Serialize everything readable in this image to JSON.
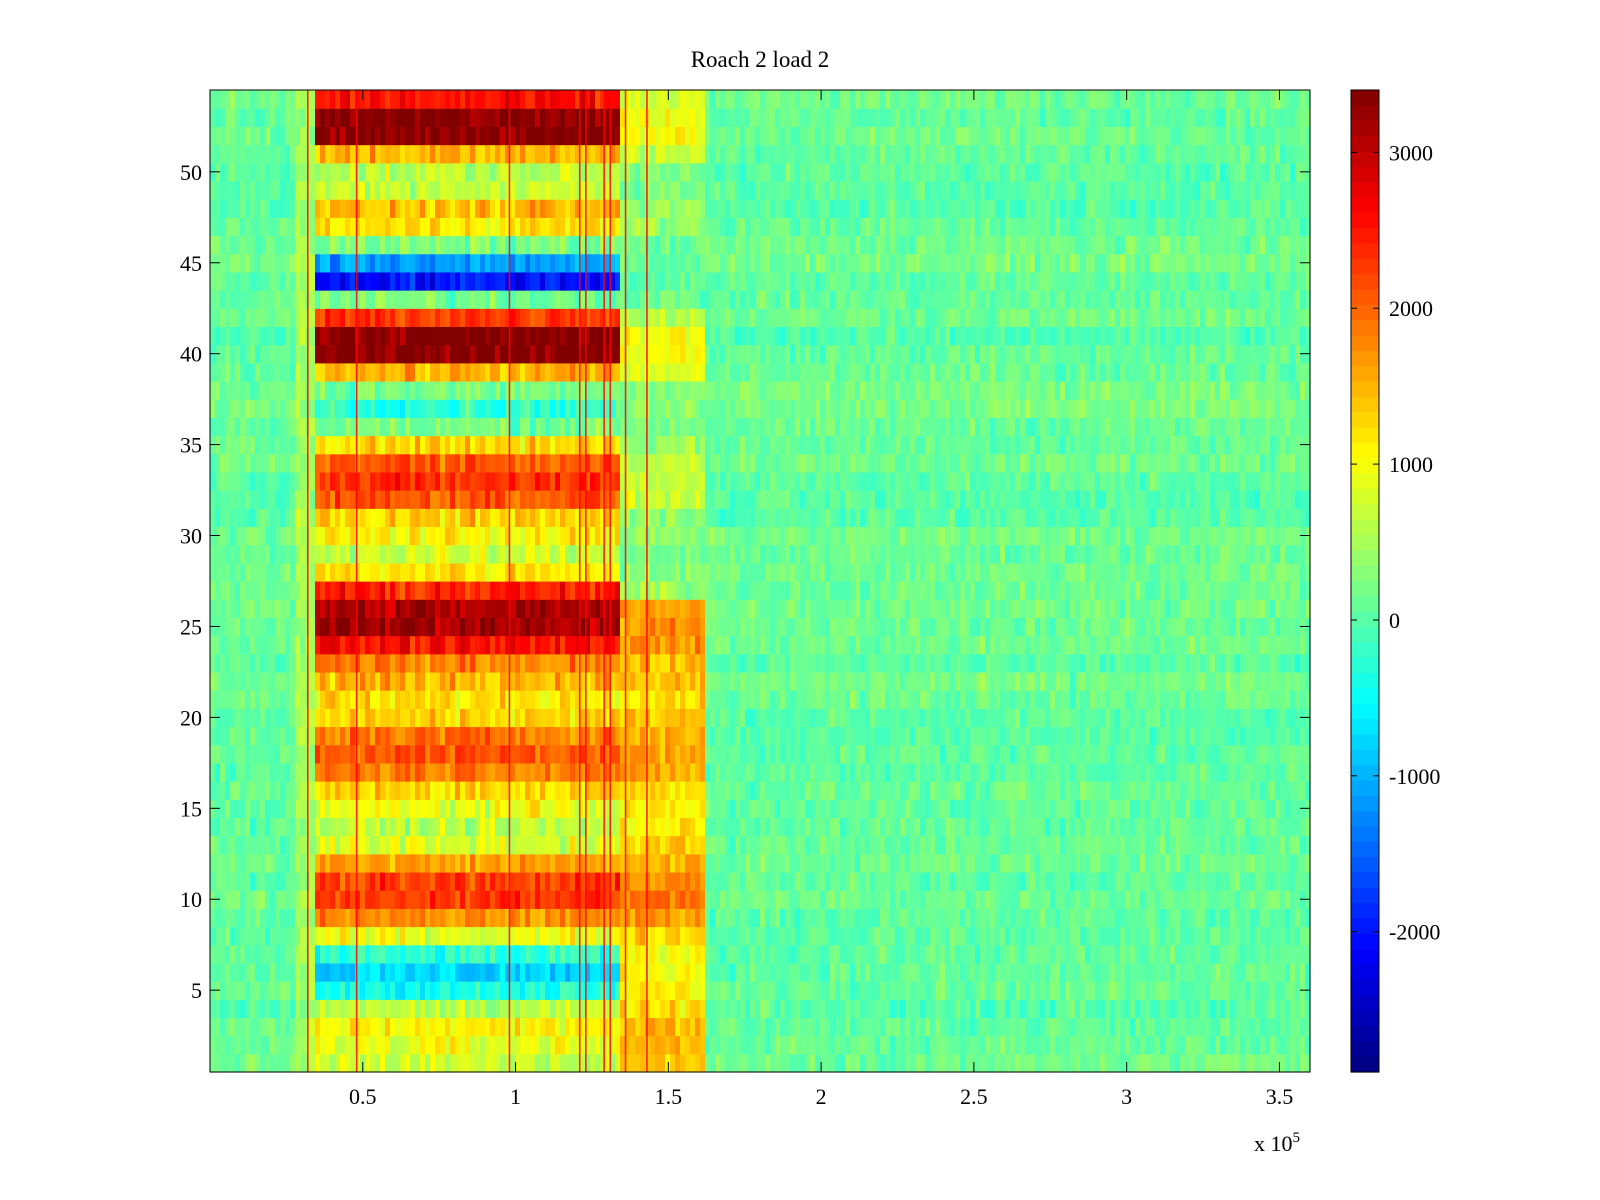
{
  "chart_data": {
    "type": "heatmap",
    "title": "Roach 2 load 2",
    "xlabel": "",
    "ylabel": "",
    "x_exponent_label": {
      "base": "x 10",
      "exponent": "5"
    },
    "xlim": [
      0.0,
      3.6
    ],
    "ylim": [
      0.5,
      54.5
    ],
    "x_ticks": [
      0.5,
      1,
      1.5,
      2,
      2.5,
      3,
      3.5
    ],
    "x_tick_labels": [
      "0.5",
      "1",
      "1.5",
      "2",
      "2.5",
      "3",
      "3.5"
    ],
    "y_ticks": [
      5,
      10,
      15,
      20,
      25,
      30,
      35,
      40,
      45,
      50
    ],
    "y_tick_labels": [
      "5",
      "10",
      "15",
      "20",
      "25",
      "30",
      "35",
      "40",
      "45",
      "50"
    ],
    "colormap": "jet",
    "clim": [
      -2900,
      3400
    ],
    "colorbar_ticks": [
      3000,
      2000,
      1000,
      0,
      -1000,
      -2000
    ],
    "colorbar_tick_labels": [
      "3000",
      "2000",
      "1000",
      "0",
      "-1000",
      "-2000"
    ],
    "rows": 54,
    "background_value": 100,
    "active_window": [
      0.35,
      1.35
    ],
    "taper_window": [
      1.35,
      1.62
    ],
    "row_values_active": [
      700,
      900,
      1100,
      600,
      -400,
      -800,
      -300,
      900,
      1700,
      2300,
      2200,
      1600,
      800,
      600,
      900,
      1300,
      1900,
      2100,
      1900,
      1300,
      1200,
      1500,
      1800,
      2600,
      3200,
      3100,
      2400,
      1200,
      700,
      1100,
      1300,
      2100,
      2300,
      2100,
      1300,
      200,
      -200,
      200,
      1500,
      3400,
      3400,
      2300,
      200,
      -2000,
      -1100,
      200,
      1200,
      1400,
      700,
      600,
      1500,
      3400,
      3400,
      2500
    ],
    "row_values_taper": [
      1400,
      1500,
      1500,
      1200,
      1100,
      1000,
      1000,
      1300,
      1700,
      1900,
      1800,
      1500,
      1300,
      1100,
      1100,
      1300,
      1500,
      1600,
      1500,
      1400,
      1300,
      1400,
      1400,
      1700,
      1700,
      1700,
      400,
      300,
      250,
      300,
      350,
      700,
      700,
      600,
      400,
      250,
      300,
      300,
      800,
      1000,
      1000,
      600,
      100,
      50,
      50,
      100,
      400,
      400,
      300,
      300,
      700,
      1000,
      1000,
      800
    ],
    "vertical_lines": [
      0.32,
      0.48,
      0.98,
      1.21,
      1.23,
      1.29,
      1.31,
      1.36,
      1.43
    ],
    "vertical_line_value": 2600
  }
}
